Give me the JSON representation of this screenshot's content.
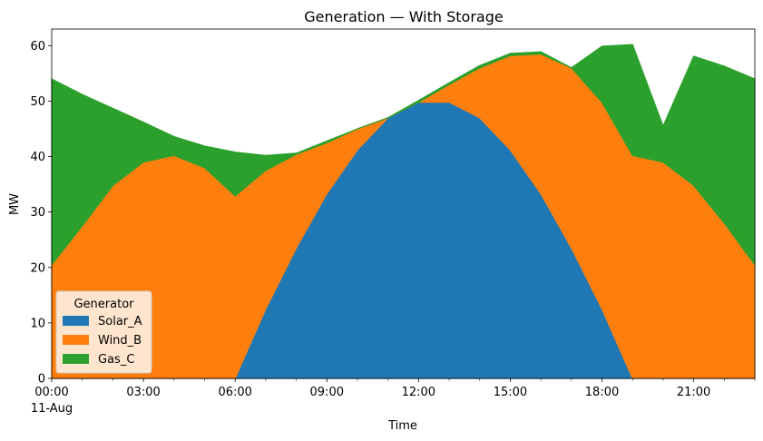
{
  "chart_data": {
    "type": "area",
    "stacked": true,
    "title": "Generation — With Storage",
    "xlabel": "Time",
    "ylabel": "MW",
    "ylim": [
      0,
      63
    ],
    "yticks": [
      "0",
      "10",
      "20",
      "30",
      "40",
      "50",
      "60"
    ],
    "xticks": [
      "00:00",
      "03:00",
      "06:00",
      "09:00",
      "12:00",
      "15:00",
      "18:00",
      "21:00"
    ],
    "xtick_sublabel": "11-Aug",
    "x": [
      "00:00",
      "01:00",
      "02:00",
      "03:00",
      "04:00",
      "05:00",
      "06:00",
      "07:00",
      "08:00",
      "09:00",
      "10:00",
      "11:00",
      "12:00",
      "13:00",
      "14:00",
      "15:00",
      "16:00",
      "17:00",
      "18:00",
      "19:00",
      "20:00",
      "21:00",
      "22:00",
      "23:00"
    ],
    "legend": {
      "title": "Generator",
      "placement": "lower-left"
    },
    "grid": false,
    "series": [
      {
        "name": "Solar_A",
        "color": "#1f77b4",
        "values": [
          0,
          0,
          0,
          0,
          0,
          0,
          0,
          12.5,
          23.5,
          33.3,
          41.2,
          47,
          49.8,
          49.8,
          47,
          41.2,
          33.3,
          23.5,
          12.5,
          0,
          0,
          0,
          0,
          0
        ]
      },
      {
        "name": "Wind_B",
        "color": "#ff7f0e",
        "values": [
          20.5,
          27.5,
          34.8,
          39,
          40.2,
          38,
          32.9,
          25,
          16.9,
          9.2,
          3.8,
          0,
          0,
          3.2,
          9,
          17,
          25.2,
          32.5,
          37.3,
          40.2,
          39,
          34.8,
          28,
          20.5
        ]
      },
      {
        "name": "Gas_C",
        "color": "#2ca02c",
        "values": [
          33.5,
          23.7,
          13.9,
          7.2,
          3.4,
          3.9,
          7.9,
          2.7,
          0.2,
          0.3,
          0,
          0,
          0.3,
          0.3,
          0.4,
          0.4,
          0.4,
          0,
          10.1,
          20,
          6.5,
          23.3,
          28.3,
          33.5
        ]
      }
    ]
  }
}
